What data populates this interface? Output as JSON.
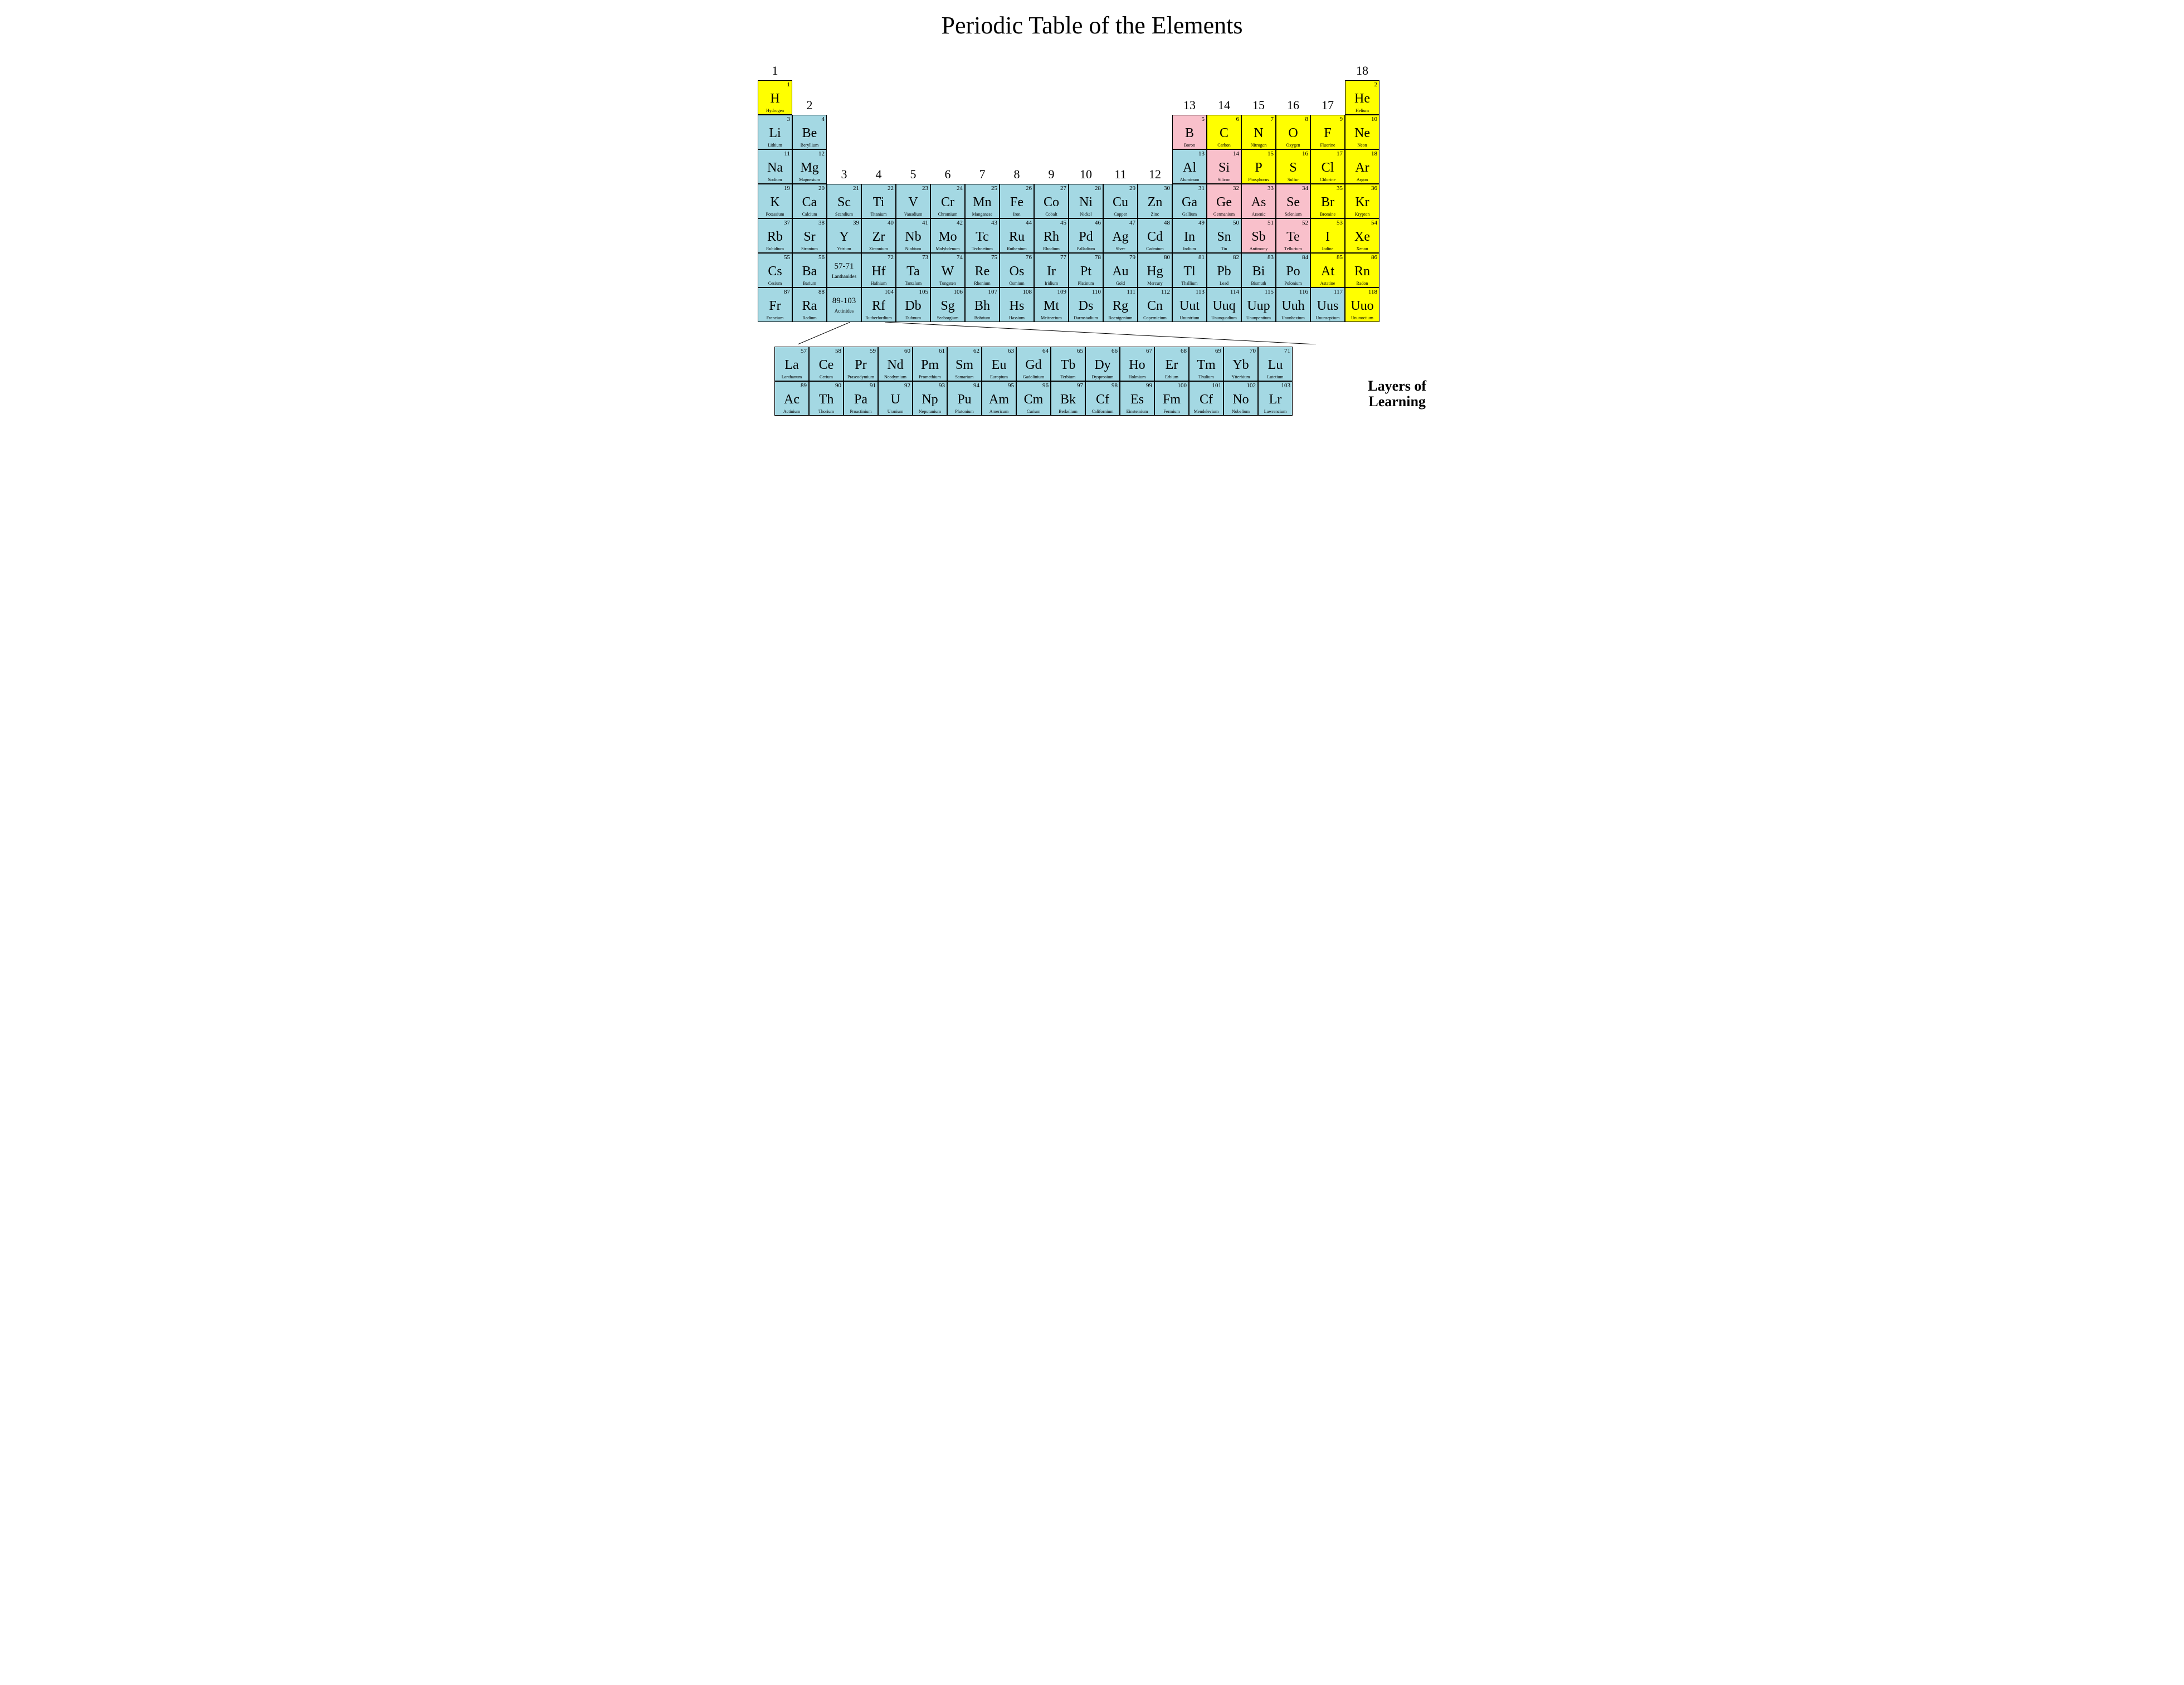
{
  "title": "Periodic Table of the Elements",
  "brand": "Layers of\nLearning",
  "colors": {
    "yellow": "#ffff00",
    "blue": "#a4d8e3",
    "pink": "#f9c0cb",
    "white": "#ffffff"
  },
  "group_labels": {
    "1": "1",
    "2": "2",
    "3": "3",
    "4": "4",
    "5": "5",
    "6": "6",
    "7": "7",
    "8": "8",
    "9": "9",
    "10": "10",
    "11": "11",
    "12": "12",
    "13": "13",
    "14": "14",
    "15": "15",
    "16": "16",
    "17": "17",
    "18": "18"
  },
  "ranges": {
    "lan": {
      "range": "57-71",
      "label": "Lanthanides"
    },
    "act": {
      "range": "89-103",
      "label": "Actinides"
    }
  },
  "elements": [
    {
      "z": 1,
      "s": "H",
      "n": "Hydrogen",
      "r": 1,
      "c": 1,
      "cat": "yellow"
    },
    {
      "z": 2,
      "s": "He",
      "n": "Helium",
      "r": 1,
      "c": 18,
      "cat": "yellow"
    },
    {
      "z": 3,
      "s": "Li",
      "n": "Lithium",
      "r": 2,
      "c": 1,
      "cat": "blue"
    },
    {
      "z": 4,
      "s": "Be",
      "n": "Beryllium",
      "r": 2,
      "c": 2,
      "cat": "blue"
    },
    {
      "z": 5,
      "s": "B",
      "n": "Boron",
      "r": 2,
      "c": 13,
      "cat": "pink"
    },
    {
      "z": 6,
      "s": "C",
      "n": "Carbon",
      "r": 2,
      "c": 14,
      "cat": "yellow"
    },
    {
      "z": 7,
      "s": "N",
      "n": "Nitrogen",
      "r": 2,
      "c": 15,
      "cat": "yellow"
    },
    {
      "z": 8,
      "s": "O",
      "n": "Oxygen",
      "r": 2,
      "c": 16,
      "cat": "yellow"
    },
    {
      "z": 9,
      "s": "F",
      "n": "Fluorine",
      "r": 2,
      "c": 17,
      "cat": "yellow"
    },
    {
      "z": 10,
      "s": "Ne",
      "n": "Neon",
      "r": 2,
      "c": 18,
      "cat": "yellow"
    },
    {
      "z": 11,
      "s": "Na",
      "n": "Sodium",
      "r": 3,
      "c": 1,
      "cat": "blue"
    },
    {
      "z": 12,
      "s": "Mg",
      "n": "Magnesium",
      "r": 3,
      "c": 2,
      "cat": "blue"
    },
    {
      "z": 13,
      "s": "Al",
      "n": "Aluminum",
      "r": 3,
      "c": 13,
      "cat": "blue"
    },
    {
      "z": 14,
      "s": "Si",
      "n": "Silicon",
      "r": 3,
      "c": 14,
      "cat": "pink"
    },
    {
      "z": 15,
      "s": "P",
      "n": "Phosphorus",
      "r": 3,
      "c": 15,
      "cat": "yellow"
    },
    {
      "z": 16,
      "s": "S",
      "n": "Sulfur",
      "r": 3,
      "c": 16,
      "cat": "yellow"
    },
    {
      "z": 17,
      "s": "Cl",
      "n": "Chlorine",
      "r": 3,
      "c": 17,
      "cat": "yellow"
    },
    {
      "z": 18,
      "s": "Ar",
      "n": "Argon",
      "r": 3,
      "c": 18,
      "cat": "yellow"
    },
    {
      "z": 19,
      "s": "K",
      "n": "Potassium",
      "r": 4,
      "c": 1,
      "cat": "blue"
    },
    {
      "z": 20,
      "s": "Ca",
      "n": "Calcium",
      "r": 4,
      "c": 2,
      "cat": "blue"
    },
    {
      "z": 21,
      "s": "Sc",
      "n": "Scandium",
      "r": 4,
      "c": 3,
      "cat": "blue"
    },
    {
      "z": 22,
      "s": "Ti",
      "n": "Titanium",
      "r": 4,
      "c": 4,
      "cat": "blue"
    },
    {
      "z": 23,
      "s": "V",
      "n": "Vanadium",
      "r": 4,
      "c": 5,
      "cat": "blue"
    },
    {
      "z": 24,
      "s": "Cr",
      "n": "Chromium",
      "r": 4,
      "c": 6,
      "cat": "blue"
    },
    {
      "z": 25,
      "s": "Mn",
      "n": "Manganese",
      "r": 4,
      "c": 7,
      "cat": "blue"
    },
    {
      "z": 26,
      "s": "Fe",
      "n": "Iron",
      "r": 4,
      "c": 8,
      "cat": "blue"
    },
    {
      "z": 27,
      "s": "Co",
      "n": "Cobalt",
      "r": 4,
      "c": 9,
      "cat": "blue"
    },
    {
      "z": 28,
      "s": "Ni",
      "n": "Nickel",
      "r": 4,
      "c": 10,
      "cat": "blue"
    },
    {
      "z": 29,
      "s": "Cu",
      "n": "Copper",
      "r": 4,
      "c": 11,
      "cat": "blue"
    },
    {
      "z": 30,
      "s": "Zn",
      "n": "Zinc",
      "r": 4,
      "c": 12,
      "cat": "blue"
    },
    {
      "z": 31,
      "s": "Ga",
      "n": "Gallium",
      "r": 4,
      "c": 13,
      "cat": "blue"
    },
    {
      "z": 32,
      "s": "Ge",
      "n": "Germanium",
      "r": 4,
      "c": 14,
      "cat": "pink"
    },
    {
      "z": 33,
      "s": "As",
      "n": "Arsenic",
      "r": 4,
      "c": 15,
      "cat": "pink"
    },
    {
      "z": 34,
      "s": "Se",
      "n": "Selenium",
      "r": 4,
      "c": 16,
      "cat": "pink"
    },
    {
      "z": 35,
      "s": "Br",
      "n": "Bromine",
      "r": 4,
      "c": 17,
      "cat": "yellow"
    },
    {
      "z": 36,
      "s": "Kr",
      "n": "Krypton",
      "r": 4,
      "c": 18,
      "cat": "yellow"
    },
    {
      "z": 37,
      "s": "Rb",
      "n": "Rubidium",
      "r": 5,
      "c": 1,
      "cat": "blue"
    },
    {
      "z": 38,
      "s": "Sr",
      "n": "Stronium",
      "r": 5,
      "c": 2,
      "cat": "blue"
    },
    {
      "z": 39,
      "s": "Y",
      "n": "Yttrium",
      "r": 5,
      "c": 3,
      "cat": "blue"
    },
    {
      "z": 40,
      "s": "Zr",
      "n": "Zirconium",
      "r": 5,
      "c": 4,
      "cat": "blue"
    },
    {
      "z": 41,
      "s": "Nb",
      "n": "Niobium",
      "r": 5,
      "c": 5,
      "cat": "blue"
    },
    {
      "z": 42,
      "s": "Mo",
      "n": "Molybdenum",
      "r": 5,
      "c": 6,
      "cat": "blue"
    },
    {
      "z": 43,
      "s": "Tc",
      "n": "Technetium",
      "r": 5,
      "c": 7,
      "cat": "blue"
    },
    {
      "z": 44,
      "s": "Ru",
      "n": "Ruthenium",
      "r": 5,
      "c": 8,
      "cat": "blue"
    },
    {
      "z": 45,
      "s": "Rh",
      "n": "Rhodium",
      "r": 5,
      "c": 9,
      "cat": "blue"
    },
    {
      "z": 46,
      "s": "Pd",
      "n": "Palladium",
      "r": 5,
      "c": 10,
      "cat": "blue"
    },
    {
      "z": 47,
      "s": "Ag",
      "n": "Slver",
      "r": 5,
      "c": 11,
      "cat": "blue"
    },
    {
      "z": 48,
      "s": "Cd",
      "n": "Cadmium",
      "r": 5,
      "c": 12,
      "cat": "blue"
    },
    {
      "z": 49,
      "s": "In",
      "n": "Indium",
      "r": 5,
      "c": 13,
      "cat": "blue"
    },
    {
      "z": 50,
      "s": "Sn",
      "n": "Tin",
      "r": 5,
      "c": 14,
      "cat": "blue"
    },
    {
      "z": 51,
      "s": "Sb",
      "n": "Antimony",
      "r": 5,
      "c": 15,
      "cat": "pink"
    },
    {
      "z": 52,
      "s": "Te",
      "n": "Tellurium",
      "r": 5,
      "c": 16,
      "cat": "pink"
    },
    {
      "z": 53,
      "s": "I",
      "n": "Iodine",
      "r": 5,
      "c": 17,
      "cat": "yellow"
    },
    {
      "z": 54,
      "s": "Xe",
      "n": "Xenon",
      "r": 5,
      "c": 18,
      "cat": "yellow"
    },
    {
      "z": 55,
      "s": "Cs",
      "n": "Cesium",
      "r": 6,
      "c": 1,
      "cat": "blue"
    },
    {
      "z": 56,
      "s": "Ba",
      "n": "Barium",
      "r": 6,
      "c": 2,
      "cat": "blue"
    },
    {
      "z": 72,
      "s": "Hf",
      "n": "Hafnium",
      "r": 6,
      "c": 4,
      "cat": "blue"
    },
    {
      "z": 73,
      "s": "Ta",
      "n": "Tantalum",
      "r": 6,
      "c": 5,
      "cat": "blue"
    },
    {
      "z": 74,
      "s": "W",
      "n": "Tungsten",
      "r": 6,
      "c": 6,
      "cat": "blue"
    },
    {
      "z": 75,
      "s": "Re",
      "n": "Rhenium",
      "r": 6,
      "c": 7,
      "cat": "blue"
    },
    {
      "z": 76,
      "s": "Os",
      "n": "Osmium",
      "r": 6,
      "c": 8,
      "cat": "blue"
    },
    {
      "z": 77,
      "s": "Ir",
      "n": "Iridium",
      "r": 6,
      "c": 9,
      "cat": "blue"
    },
    {
      "z": 78,
      "s": "Pt",
      "n": "Platinum",
      "r": 6,
      "c": 10,
      "cat": "blue"
    },
    {
      "z": 79,
      "s": "Au",
      "n": "Gold",
      "r": 6,
      "c": 11,
      "cat": "blue"
    },
    {
      "z": 80,
      "s": "Hg",
      "n": "Mercury",
      "r": 6,
      "c": 12,
      "cat": "blue"
    },
    {
      "z": 81,
      "s": "Tl",
      "n": "Thallium",
      "r": 6,
      "c": 13,
      "cat": "blue"
    },
    {
      "z": 82,
      "s": "Pb",
      "n": "Lead",
      "r": 6,
      "c": 14,
      "cat": "blue"
    },
    {
      "z": 83,
      "s": "Bi",
      "n": "Bismuth",
      "r": 6,
      "c": 15,
      "cat": "blue"
    },
    {
      "z": 84,
      "s": "Po",
      "n": "Polonium",
      "r": 6,
      "c": 16,
      "cat": "blue"
    },
    {
      "z": 85,
      "s": "At",
      "n": "Astatine",
      "r": 6,
      "c": 17,
      "cat": "yellow"
    },
    {
      "z": 86,
      "s": "Rn",
      "n": "Radon",
      "r": 6,
      "c": 18,
      "cat": "yellow"
    },
    {
      "z": 87,
      "s": "Fr",
      "n": "Francium",
      "r": 7,
      "c": 1,
      "cat": "blue"
    },
    {
      "z": 88,
      "s": "Ra",
      "n": "Radium",
      "r": 7,
      "c": 2,
      "cat": "blue"
    },
    {
      "z": 104,
      "s": "Rf",
      "n": "Rutherfordium",
      "r": 7,
      "c": 4,
      "cat": "blue"
    },
    {
      "z": 105,
      "s": "Db",
      "n": "Dubnum",
      "r": 7,
      "c": 5,
      "cat": "blue"
    },
    {
      "z": 106,
      "s": "Sg",
      "n": "Seaborgium",
      "r": 7,
      "c": 6,
      "cat": "blue"
    },
    {
      "z": 107,
      "s": "Bh",
      "n": "Bohrium",
      "r": 7,
      "c": 7,
      "cat": "blue"
    },
    {
      "z": 108,
      "s": "Hs",
      "n": "Hassium",
      "r": 7,
      "c": 8,
      "cat": "blue"
    },
    {
      "z": 109,
      "s": "Mt",
      "n": "Meitnerium",
      "r": 7,
      "c": 9,
      "cat": "blue"
    },
    {
      "z": 110,
      "s": "Ds",
      "n": "Darmstadium",
      "r": 7,
      "c": 10,
      "cat": "blue"
    },
    {
      "z": 111,
      "s": "Rg",
      "n": "Roentgenium",
      "r": 7,
      "c": 11,
      "cat": "blue"
    },
    {
      "z": 112,
      "s": "Cn",
      "n": "Copernicium",
      "r": 7,
      "c": 12,
      "cat": "blue"
    },
    {
      "z": 113,
      "s": "Uut",
      "n": "Ununtrium",
      "r": 7,
      "c": 13,
      "cat": "blue"
    },
    {
      "z": 114,
      "s": "Uuq",
      "n": "Ununquadium",
      "r": 7,
      "c": 14,
      "cat": "blue"
    },
    {
      "z": 115,
      "s": "Uup",
      "n": "Ununpentium",
      "r": 7,
      "c": 15,
      "cat": "blue"
    },
    {
      "z": 116,
      "s": "Uuh",
      "n": "Ununhexium",
      "r": 7,
      "c": 16,
      "cat": "blue"
    },
    {
      "z": 117,
      "s": "Uus",
      "n": "Ununseptium",
      "r": 7,
      "c": 17,
      "cat": "blue"
    },
    {
      "z": 118,
      "s": "Uuo",
      "n": "Ununoctium",
      "r": 7,
      "c": 18,
      "cat": "yellow"
    }
  ],
  "lanthanides": [
    {
      "z": 57,
      "s": "La",
      "n": "Lanthanum"
    },
    {
      "z": 58,
      "s": "Ce",
      "n": "Cerium"
    },
    {
      "z": 59,
      "s": "Pr",
      "n": "Praseodymium"
    },
    {
      "z": 60,
      "s": "Nd",
      "n": "Neodymium"
    },
    {
      "z": 61,
      "s": "Pm",
      "n": "Promethium"
    },
    {
      "z": 62,
      "s": "Sm",
      "n": "Samarium"
    },
    {
      "z": 63,
      "s": "Eu",
      "n": "Europium"
    },
    {
      "z": 64,
      "s": "Gd",
      "n": "Gadolinium"
    },
    {
      "z": 65,
      "s": "Tb",
      "n": "Terbium"
    },
    {
      "z": 66,
      "s": "Dy",
      "n": "Dysprosium"
    },
    {
      "z": 67,
      "s": "Ho",
      "n": "Holmium"
    },
    {
      "z": 68,
      "s": "Er",
      "n": "Erbium"
    },
    {
      "z": 69,
      "s": "Tm",
      "n": "Thulium"
    },
    {
      "z": 70,
      "s": "Yb",
      "n": "Ytterbium"
    },
    {
      "z": 71,
      "s": "Lu",
      "n": "Lutetium"
    }
  ],
  "actinides": [
    {
      "z": 89,
      "s": "Ac",
      "n": "Actinium"
    },
    {
      "z": 90,
      "s": "Th",
      "n": "Thorium"
    },
    {
      "z": 91,
      "s": "Pa",
      "n": "Proactinium"
    },
    {
      "z": 92,
      "s": "U",
      "n": "Uranium"
    },
    {
      "z": 93,
      "s": "Np",
      "n": "Neputunium"
    },
    {
      "z": 94,
      "s": "Pu",
      "n": "Plutonium"
    },
    {
      "z": 95,
      "s": "Am",
      "n": "Americum"
    },
    {
      "z": 96,
      "s": "Cm",
      "n": "Curium"
    },
    {
      "z": 97,
      "s": "Bk",
      "n": "Berkelium"
    },
    {
      "z": 98,
      "s": "Cf",
      "n": "Californium"
    },
    {
      "z": 99,
      "s": "Es",
      "n": "Einsteinium"
    },
    {
      "z": 100,
      "s": "Fm",
      "n": "Fermium"
    },
    {
      "z": 101,
      "s": "Cf",
      "n": "Mendelevium"
    },
    {
      "z": 102,
      "s": "No",
      "n": "Nobelium"
    },
    {
      "z": 103,
      "s": "Lr",
      "n": "Lawrencium"
    }
  ]
}
